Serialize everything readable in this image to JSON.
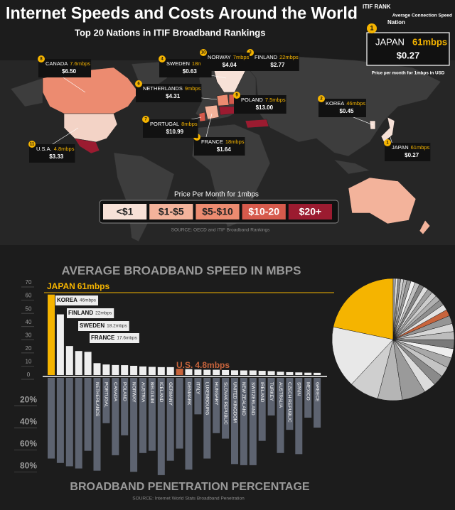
{
  "header": {
    "title": "Internet Speeds and Costs Around the World",
    "subtitle": "Top 20 Nations in ITIF Broadband Rankings"
  },
  "key": {
    "rank_label": "ITIF RANK",
    "speed_label": "Average Connection Speed",
    "nation_label": "Nation",
    "rank": 1,
    "country": "JAPAN",
    "speed": "61mbps",
    "price": "$0.27",
    "price_label": "Price per month for 1mbps in USD"
  },
  "map": {
    "callouts": [
      {
        "rank": 1,
        "country": "JAPAN",
        "speed": "61mbps",
        "price": "$0.27"
      },
      {
        "rank": 2,
        "country": "KOREA",
        "speed": "46mbps",
        "price": "$0.45"
      },
      {
        "rank": 3,
        "country": "FINLAND",
        "speed": "22mbps",
        "price": "$2.77"
      },
      {
        "rank": 4,
        "country": "SWEDEN",
        "speed": "18mbps",
        "price": "$0.63"
      },
      {
        "rank": 5,
        "country": "FRANCE",
        "speed": "18mbps",
        "price": "$1.64"
      },
      {
        "rank": 6,
        "country": "NETHERLANDS",
        "speed": "9mbps",
        "price": "$4.31"
      },
      {
        "rank": 7,
        "country": "PORTUGAL",
        "speed": "8mbps",
        "price": "$10.99"
      },
      {
        "rank": 8,
        "country": "CANADA",
        "speed": "7.6mbps",
        "price": "$6.50"
      },
      {
        "rank": 9,
        "country": "POLAND",
        "speed": "7.5mbps",
        "price": "$13.00"
      },
      {
        "rank": 10,
        "country": "NORWAY",
        "speed": "7mbps",
        "price": "$4.04"
      },
      {
        "rank": 11,
        "country": "U.S.A.",
        "speed": "4.8mbps",
        "price": "$3.33"
      }
    ],
    "legend": {
      "title": "Price Per Month for 1mbps",
      "items": [
        {
          "label": "<$1",
          "color": "#f7e1d7"
        },
        {
          "label": "$1-$5",
          "color": "#f3b39b"
        },
        {
          "label": "$5-$10",
          "color": "#ec8b70"
        },
        {
          "label": "$10-20",
          "color": "#d65a4c"
        },
        {
          "label": "$20+",
          "color": "#9b1b30"
        }
      ]
    },
    "source": "SOURCE: OECD and ITIF Broadband Rankings"
  },
  "chart_data": [
    {
      "type": "bar",
      "title": "AVERAGE BROADBAND SPEED IN MBPS",
      "categories": [
        "JAPAN",
        "KOREA",
        "FINLAND",
        "SWEDEN",
        "FRANCE",
        null,
        null,
        null,
        null,
        null,
        null,
        null,
        null,
        null,
        "U.S.",
        null,
        null,
        null,
        null,
        null,
        null,
        null,
        null,
        null,
        null,
        null,
        null,
        null,
        null,
        null
      ],
      "values": [
        61,
        46,
        22,
        18.2,
        17.6,
        9,
        8,
        7.6,
        7.5,
        7,
        6.5,
        6.2,
        6,
        6,
        4.8,
        4.5,
        4.2,
        4,
        4,
        3.8,
        3.6,
        3.5,
        3.5,
        3.2,
        3,
        2.5,
        2.2,
        2,
        1.8,
        1.7
      ],
      "value_labels": [
        "61mbps",
        "46mbps",
        "22mbps",
        "18.2mbps",
        "17.6mbps",
        null,
        null,
        null,
        null,
        null,
        null,
        null,
        null,
        null,
        "4.8mbps",
        null,
        null,
        null,
        null,
        null,
        null,
        null,
        null,
        null,
        null,
        null,
        null,
        null,
        null,
        null
      ],
      "colors": [
        "#f5b400",
        "#eeeeee",
        "#eeeeee",
        "#eeeeee",
        "#eeeeee",
        "#eeeeee",
        "#eeeeee",
        "#eeeeee",
        "#eeeeee",
        "#eeeeee",
        "#eeeeee",
        "#eeeeee",
        "#eeeeee",
        "#eeeeee",
        "#c8643c",
        "#eeeeee",
        "#eeeeee",
        "#eeeeee",
        "#eeeeee",
        "#eeeeee",
        "#eeeeee",
        "#eeeeee",
        "#eeeeee",
        "#eeeeee",
        "#eeeeee",
        "#eeeeee",
        "#eeeeee",
        "#eeeeee",
        "#eeeeee",
        "#eeeeee"
      ],
      "pie_colors": [
        "#f5b400",
        "#e8e8e8",
        "#cfcfcf",
        "#b5b5b5",
        "#9a9a9a",
        "#dcdcdc",
        "#8a8a8a",
        "#c4c4c4",
        "#a8a8a8",
        "#eeeeee",
        "#7a7a7a",
        "#bcbcbc",
        "#d6d6d6",
        "#959595",
        "#c8643c",
        "#e2e2e2",
        "#8f8f8f",
        "#b0b0b0",
        "#cccccc",
        "#a0a0a0",
        "#dddddd",
        "#858585",
        "#c0c0c0",
        "#f2f2f2",
        "#999999",
        "#b8b8b8",
        "#d2d2d2",
        "#8c8c8c",
        "#e5e5e5",
        "#aaaaaa"
      ],
      "ylim": [
        0,
        70
      ],
      "yticks": [
        0,
        10,
        20,
        30,
        40,
        50,
        60,
        70
      ]
    },
    {
      "type": "bar",
      "title": "BROADBAND PENETRATION PERCENTAGE",
      "source": "SOURCE: Internet World Stats Broadband Penetration",
      "categories": [
        null,
        null,
        null,
        null,
        null,
        "NETHERLANDS",
        "PORTUGAL",
        "CANADA",
        "POLAND",
        "NORWAY",
        "AUSTRIA",
        "BELGIUM",
        "ICELAND",
        "GERMANY",
        null,
        "DENMARK",
        "ITALY",
        "LUXEMBOURG",
        "HUNGARY",
        "SLOVAK REPUBLIC",
        "UNITED KINGDOM",
        "NEW ZEALAND",
        "SWITZERLAND",
        "IRELAND",
        "TURKEY",
        "AUSTRALIA",
        "CZECH REPUBLIC",
        "SPAIN",
        "MEXICO",
        "GREECE"
      ],
      "values": [
        73,
        77,
        80,
        82,
        66,
        84,
        41,
        70,
        52,
        85,
        68,
        66,
        88,
        75,
        64,
        83,
        33,
        73,
        50,
        55,
        78,
        79,
        79,
        57,
        34,
        68,
        47,
        69,
        36,
        45
      ],
      "color": "#5d6370",
      "ylim": [
        0,
        90
      ],
      "yticks": [
        {
          "value": 20,
          "label": "20%"
        },
        {
          "value": 40,
          "label": "40%"
        },
        {
          "value": 60,
          "label": "60%"
        },
        {
          "value": 80,
          "label": "80%"
        }
      ]
    }
  ]
}
